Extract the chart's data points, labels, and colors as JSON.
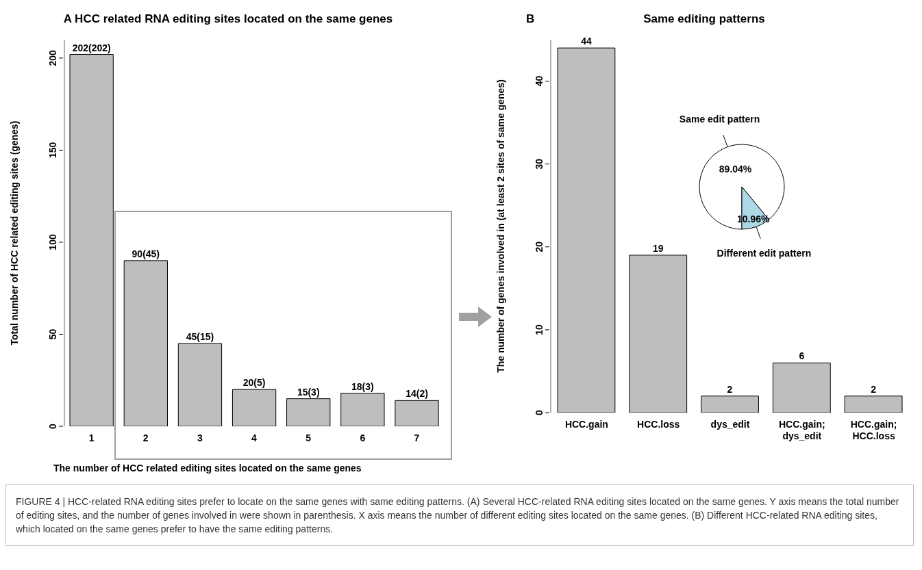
{
  "chart_data": [
    {
      "type": "bar",
      "title": "A HCC related RNA editing sites located on the same genes",
      "xlabel": "The number of  HCC related editing sites located on the same genes",
      "ylabel": "Total number of HCC related editing sites (genes)",
      "categories": [
        "1",
        "2",
        "3",
        "4",
        "5",
        "6",
        "7"
      ],
      "values": [
        202,
        90,
        45,
        20,
        15,
        18,
        14
      ],
      "value_labels": [
        "202(202)",
        "90(45)",
        "45(15)",
        "20(5)",
        "15(3)",
        "18(3)",
        "14(2)"
      ],
      "color": "#bebebe",
      "ylim": [
        0,
        210
      ],
      "yticks": [
        0,
        50,
        100,
        150,
        200
      ],
      "annotations": [
        "FIGURE 4 | HCC-related RNA editing sites prefer to locate on the same genes with same editing patterns. (A) Several HCC-related RNA editing sites located on the same genes. Y axis means the total number of editing sites, and the number of genes involved in were shown in parenthesis. X axis means the number of different editing sites located on the same genes. (B) Different HCC-related RNA editing sites, which located on the same genes prefer to have the same editing patterns."
      ]
    },
    {
      "type": "bar",
      "title": "Same editing patterns",
      "ylabel": "The number of genes involved in (at least 2 sites of same genes)",
      "categories": [
        "HCC.gain",
        "HCC.loss",
        "dys_edit",
        "HCC.gain; dys_edit",
        "HCC.gain; HCC.loss"
      ],
      "values": [
        44,
        19,
        2,
        6,
        2
      ],
      "data_labels": true,
      "color": "#bebebe",
      "ylim": [
        0,
        45
      ],
      "yticks": [
        0,
        10,
        20,
        30,
        40
      ],
      "annotations": [
        "B"
      ]
    },
    {
      "type": "pie",
      "categories": [
        "Same edit pattern",
        "Different edit pattern"
      ],
      "values": [
        89.04,
        10.96
      ],
      "colors": [
        "#ffffff",
        "#add8e6"
      ],
      "value_labels": [
        "89.04%",
        "10.96%"
      ]
    }
  ]
}
